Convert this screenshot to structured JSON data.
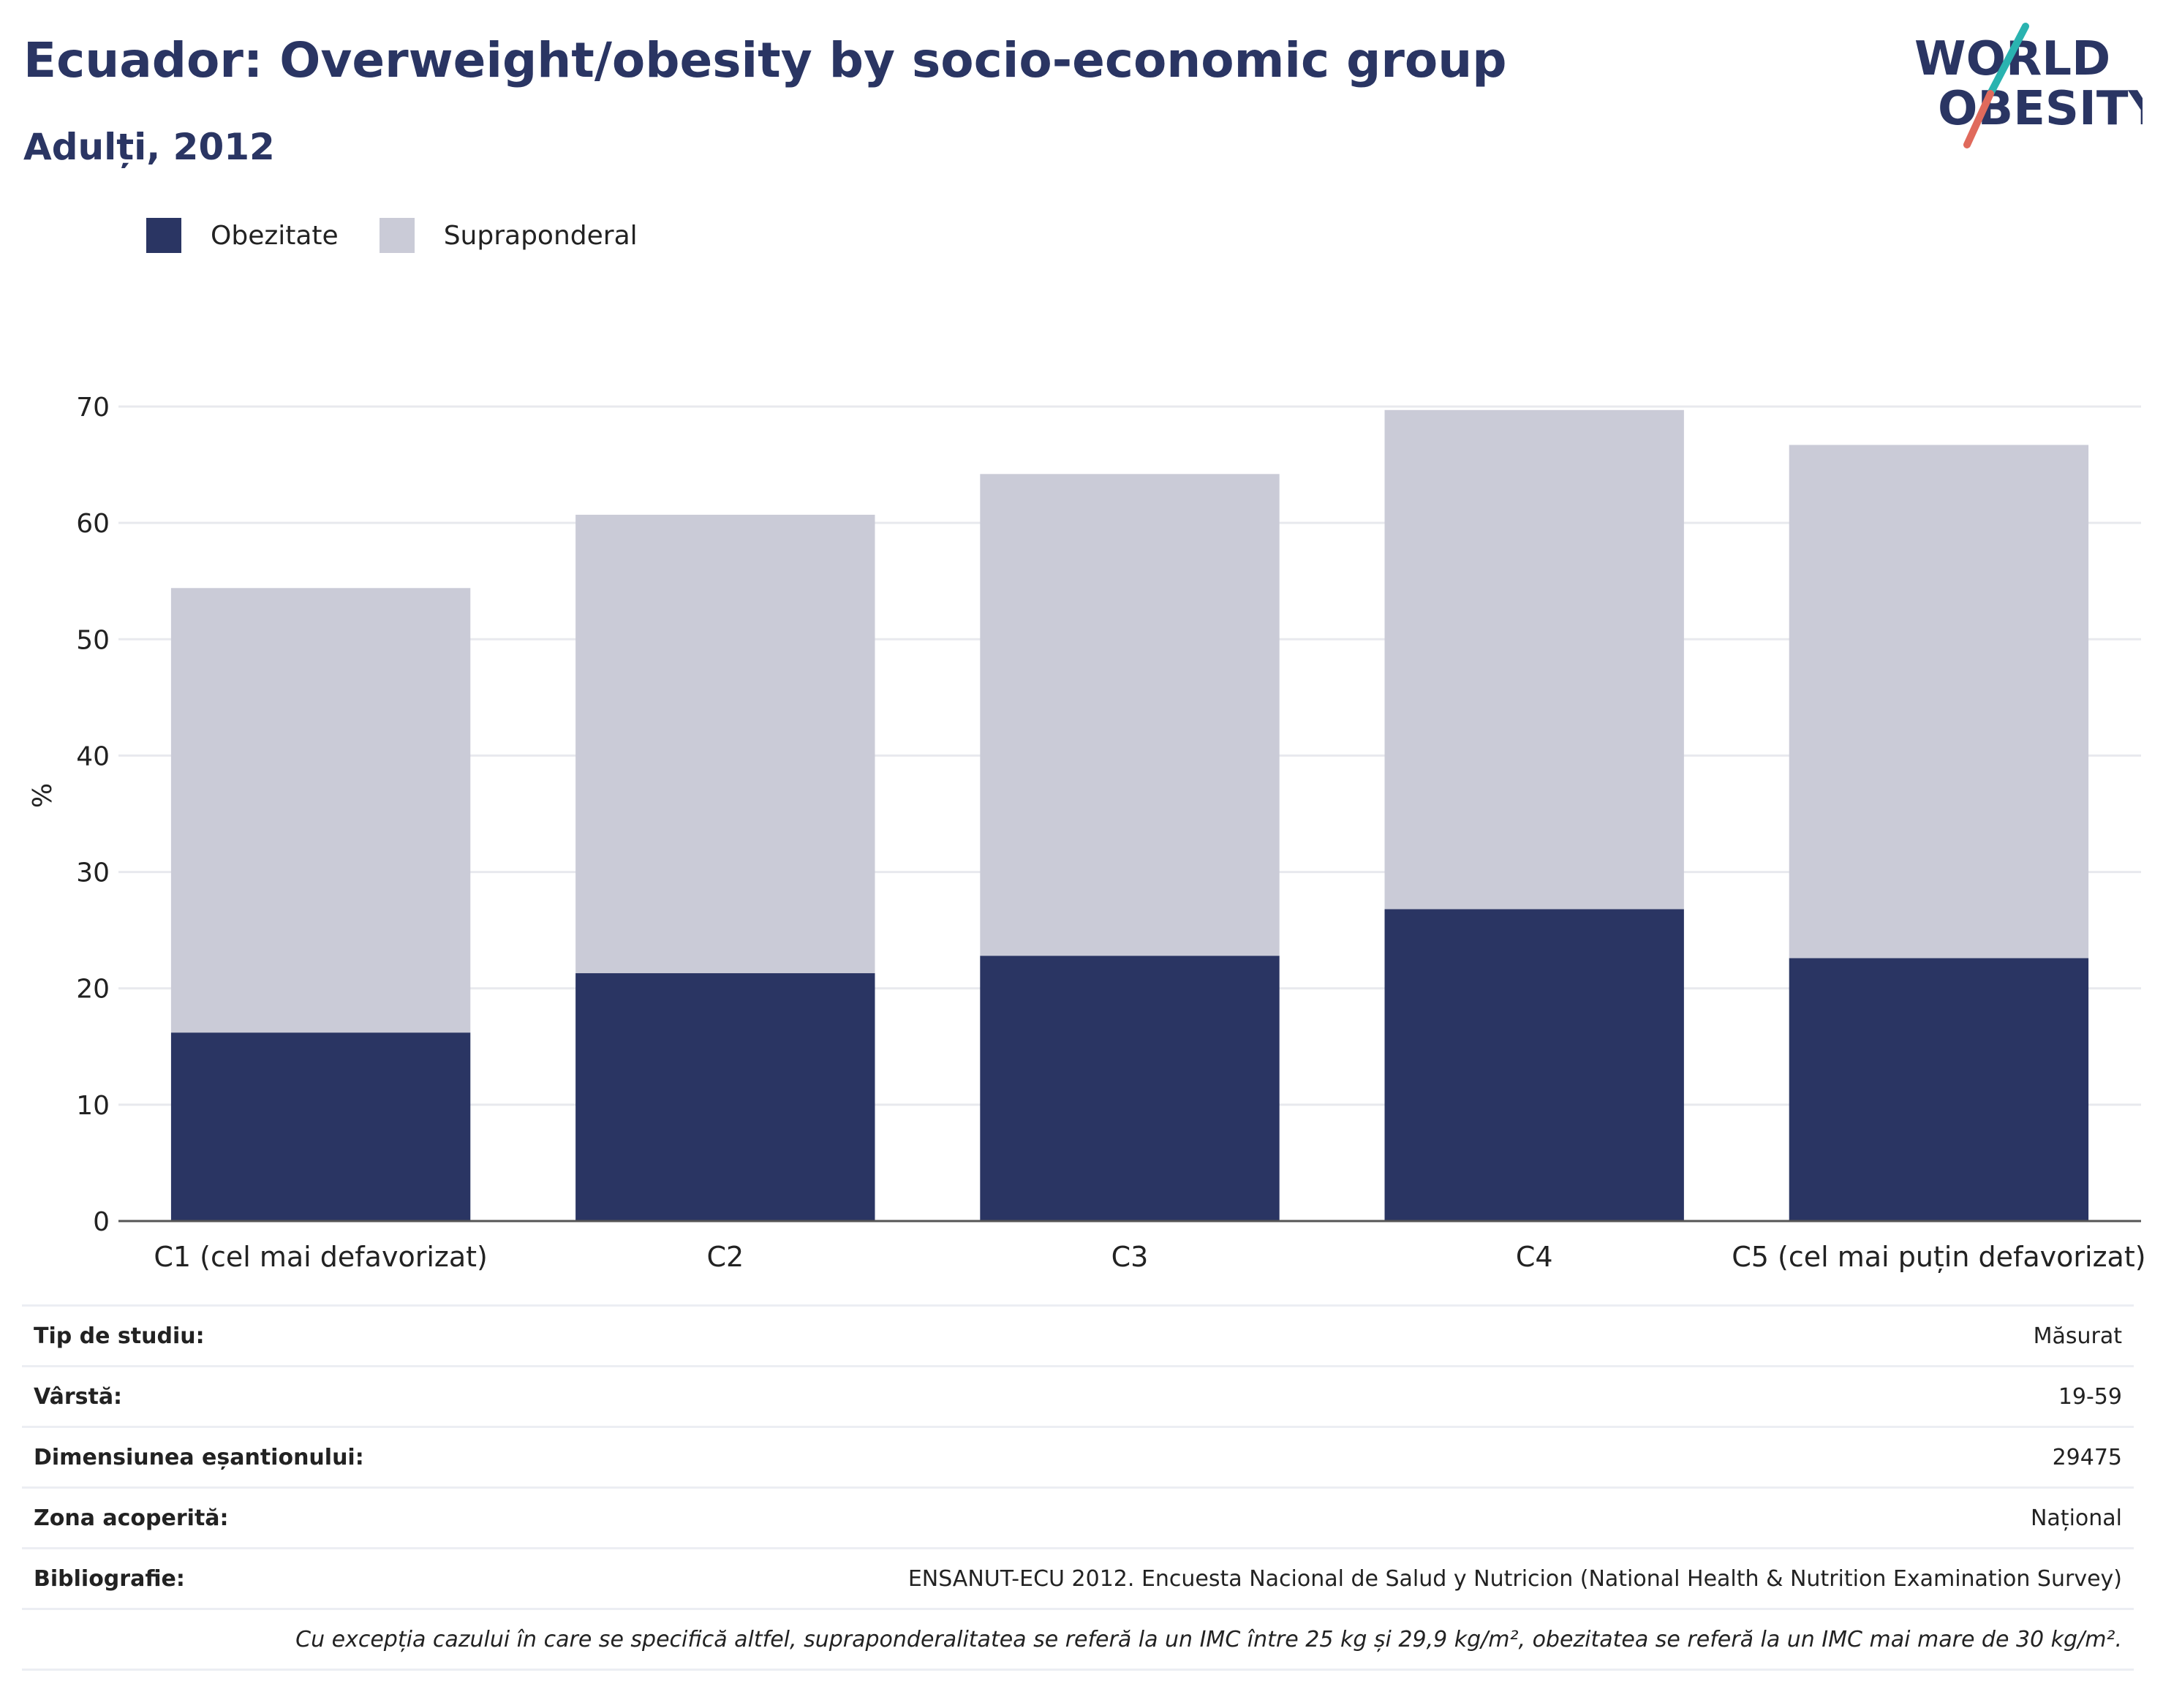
{
  "title": "Ecuador: Overweight/obesity by socio-economic group",
  "subtitle": "Adulți, 2012",
  "logo": {
    "line1": "WORLD",
    "line2": "OBESITY"
  },
  "colors": {
    "obesity": "#2a3563",
    "overweight": "#cacbd7",
    "grid": "#e8e9ee",
    "axis": "#555555",
    "logo_teal": "#2ab3b0",
    "logo_coral": "#e06a5c"
  },
  "legend": [
    {
      "label": "Obezitate",
      "color": "#2a3563"
    },
    {
      "label": "Supraponderal",
      "color": "#cacbd7"
    }
  ],
  "chart_data": {
    "type": "bar",
    "stacked": true,
    "categories": [
      "C1 (cel mai defavorizat)",
      "C2",
      "C3",
      "C4",
      "C5 (cel mai puțin defavorizat)"
    ],
    "series": [
      {
        "name": "Obezitate",
        "values": [
          16.2,
          21.3,
          22.8,
          26.8,
          22.6
        ]
      },
      {
        "name": "Supraponderal",
        "values": [
          38.2,
          39.4,
          41.4,
          42.9,
          44.1
        ]
      }
    ],
    "ylabel": "%",
    "ylim": [
      0,
      70
    ],
    "yticks": [
      0,
      10,
      20,
      30,
      40,
      50,
      60,
      70
    ],
    "grid": true,
    "legend_position": "top-left"
  },
  "meta": [
    {
      "key": "Tip de studiu:",
      "value": "Măsurat"
    },
    {
      "key": "Vârstă:",
      "value": "19-59"
    },
    {
      "key": "Dimensiunea eșantionului:",
      "value": "29475"
    },
    {
      "key": "Zona acoperită:",
      "value": "Național"
    },
    {
      "key": "Bibliografie:",
      "value": "ENSANUT-ECU 2012. Encuesta Nacional de Salud y Nutricion (National Health & Nutrition Examination Survey)"
    }
  ],
  "note": "Cu excepția cazului în care se specifică altfel, supraponderalitatea se referă la un IMC între 25 kg și 29,9 kg/m², obezitatea se referă la un IMC mai mare de 30 kg/m²."
}
